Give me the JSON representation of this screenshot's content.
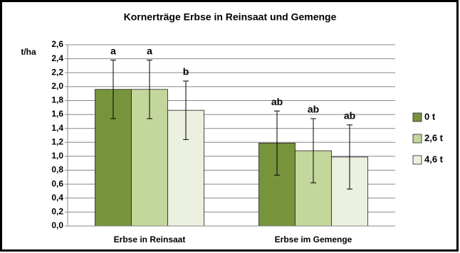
{
  "chart_data": {
    "type": "bar",
    "title": "Kornerträge Erbse in Reinsaat und Gemenge",
    "y_label": "t/ha",
    "categories": [
      "Erbse in Reinsaat",
      "Erbse im Gemenge"
    ],
    "series": [
      {
        "name": "0 t",
        "color": "#77933c",
        "values": [
          1.96,
          1.19
        ],
        "errors": [
          0.42,
          0.46
        ],
        "significance": [
          "a",
          "ab"
        ]
      },
      {
        "name": "2,6 t",
        "color": "#c3d69b",
        "values": [
          1.96,
          1.08
        ],
        "errors": [
          0.42,
          0.46
        ],
        "significance": [
          "a",
          "ab"
        ]
      },
      {
        "name": "4,6 t",
        "color": "#ebf1de",
        "values": [
          1.66,
          0.99
        ],
        "errors": [
          0.42,
          0.46
        ],
        "significance": [
          "b",
          "ab"
        ]
      }
    ],
    "ylim": [
      0,
      2.6
    ],
    "yticks": [
      {
        "value": 0,
        "label": "0,0"
      },
      {
        "value": 0.2,
        "label": "0,2"
      },
      {
        "value": 0.4,
        "label": "0,4"
      },
      {
        "value": 0.6,
        "label": "0,6"
      },
      {
        "value": 0.8,
        "label": "0,8"
      },
      {
        "value": 1.0,
        "label": "1,0"
      },
      {
        "value": 1.2,
        "label": "1,2"
      },
      {
        "value": 1.4,
        "label": "1,4"
      },
      {
        "value": 1.6,
        "label": "1,6"
      },
      {
        "value": 1.8,
        "label": "1,8"
      },
      {
        "value": 2.0,
        "label": "2,0"
      },
      {
        "value": 2.2,
        "label": "2,2"
      },
      {
        "value": 2.4,
        "label": "2,4"
      },
      {
        "value": 2.6,
        "label": "2,6"
      }
    ],
    "grid": true,
    "legend": "right"
  }
}
